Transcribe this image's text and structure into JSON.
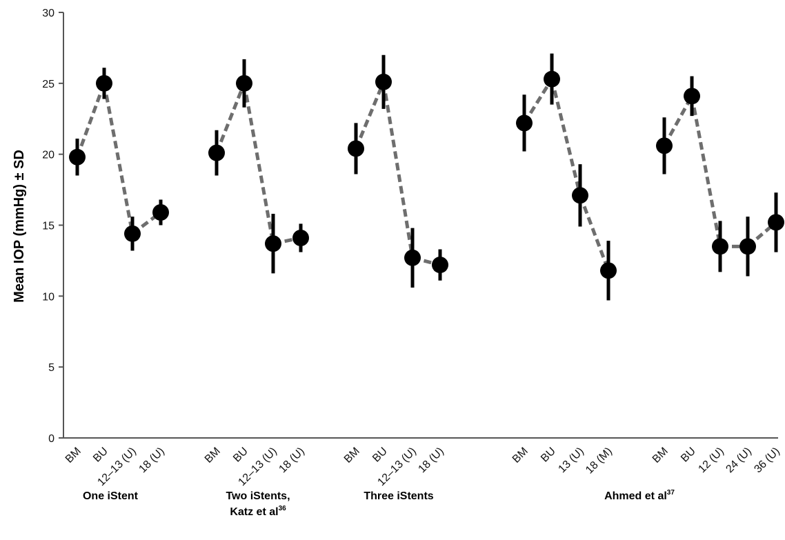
{
  "chart_data": {
    "type": "scatter",
    "ylabel": "Mean IOP (mmHg) ± SD",
    "ylim": [
      0,
      30
    ],
    "yticks": [
      0,
      5,
      10,
      15,
      20,
      25,
      30
    ],
    "grid": false,
    "groups": [
      {
        "label": "One iStent",
        "label_sup": "",
        "label_line2": "",
        "label_line2_sup": "",
        "points": [
          {
            "x": "BM",
            "y": 19.8,
            "sd": 1.3
          },
          {
            "x": "BU",
            "y": 25.0,
            "sd": 1.1
          },
          {
            "x": "12–13 (U)",
            "y": 14.4,
            "sd": 1.2
          },
          {
            "x": "18 (U)",
            "y": 15.9,
            "sd": 0.9
          }
        ]
      },
      {
        "label": "Two iStents,",
        "label_sup": "",
        "label_line2": "Katz et al",
        "label_line2_sup": "36",
        "points": [
          {
            "x": "BM",
            "y": 20.1,
            "sd": 1.6
          },
          {
            "x": "BU",
            "y": 25.0,
            "sd": 1.7
          },
          {
            "x": "12–13 (U)",
            "y": 13.7,
            "sd": 2.1
          },
          {
            "x": "18 (U)",
            "y": 14.1,
            "sd": 1.0
          }
        ]
      },
      {
        "label": "Three iStents",
        "label_sup": "",
        "label_line2": "",
        "label_line2_sup": "",
        "points": [
          {
            "x": "BM",
            "y": 20.4,
            "sd": 1.8
          },
          {
            "x": "BU",
            "y": 25.1,
            "sd": 1.9
          },
          {
            "x": "12–13 (U)",
            "y": 12.7,
            "sd": 2.1
          },
          {
            "x": "18 (U)",
            "y": 12.2,
            "sd": 1.1
          }
        ]
      },
      {
        "label": "Ahmed et al",
        "label_sup": "37",
        "label_line2": "",
        "label_line2_sup": "",
        "points": [
          {
            "x": "BM",
            "y": 22.2,
            "sd": 2.0
          },
          {
            "x": "BU",
            "y": 25.3,
            "sd": 1.8
          },
          {
            "x": "13 (U)",
            "y": 17.1,
            "sd": 2.2
          },
          {
            "x": "18 (M)",
            "y": 11.8,
            "sd": 2.1
          }
        ]
      },
      {
        "label": "",
        "label_sup": "",
        "label_line2": "",
        "label_line2_sup": "",
        "points": [
          {
            "x": "BM",
            "y": 20.6,
            "sd": 2.0
          },
          {
            "x": "BU",
            "y": 24.1,
            "sd": 1.4
          },
          {
            "x": "12 (U)",
            "y": 13.5,
            "sd": 1.8
          },
          {
            "x": "24 (U)",
            "y": 13.5,
            "sd": 2.1
          },
          {
            "x": "36 (U)",
            "y": 15.2,
            "sd": 2.1
          }
        ]
      }
    ],
    "colors": {
      "marker": "#000000",
      "errorbar": "#000000",
      "connector": "#6e6e6e",
      "axis": "#555555"
    }
  }
}
